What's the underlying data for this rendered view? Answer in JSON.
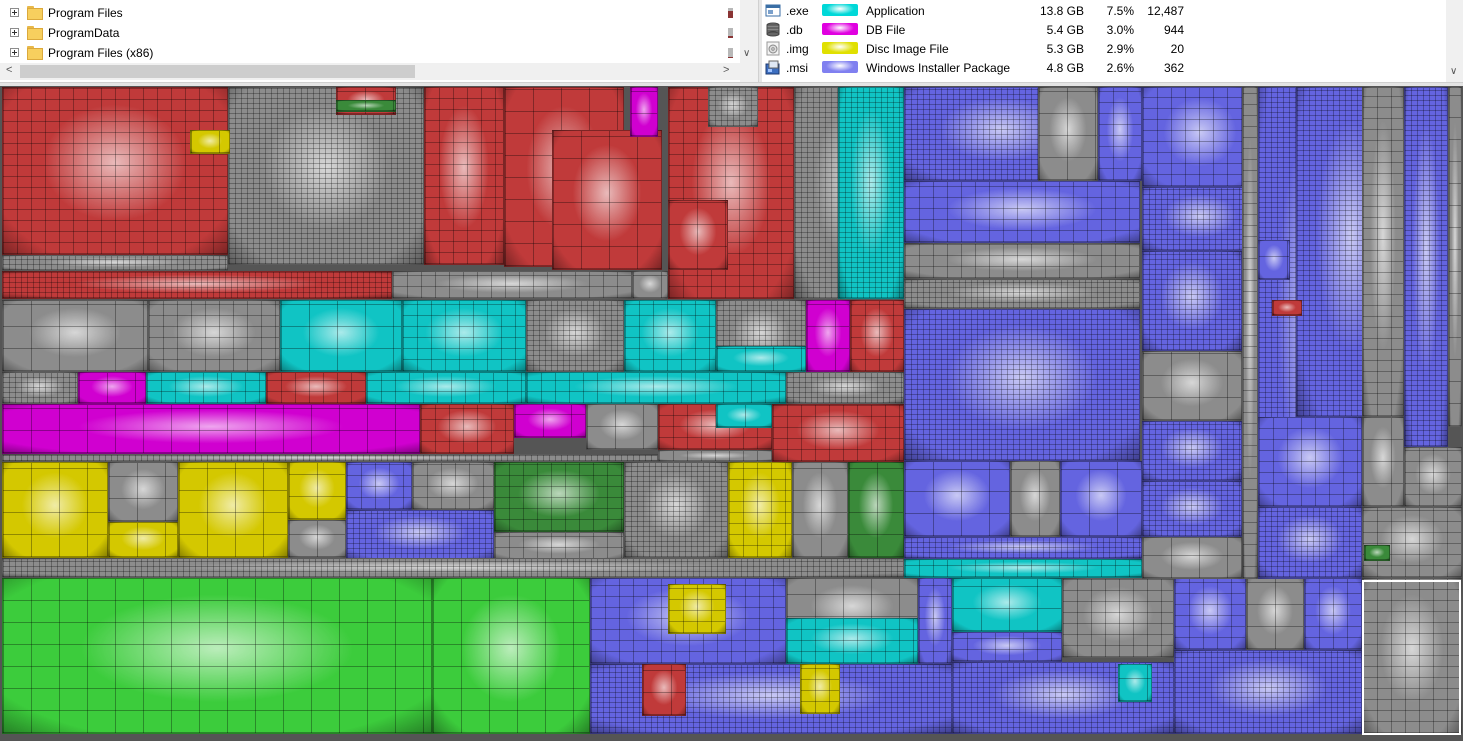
{
  "tree": {
    "items": [
      {
        "label": "Program Files",
        "bar_fraction": 0.75
      },
      {
        "label": "ProgramData",
        "bar_fraction": 0.25
      },
      {
        "label": "Program Files (x86)",
        "bar_fraction": 0.15
      }
    ]
  },
  "extensions": [
    {
      "ext": ".exe",
      "color": "#00d8d8",
      "description": "Application",
      "size": "13.8 GB",
      "percent": "7.5%",
      "files": "12,487",
      "icon": "window-icon"
    },
    {
      "ext": ".db",
      "color": "#e000e0",
      "description": "DB File",
      "size": "5.4 GB",
      "percent": "3.0%",
      "files": "944",
      "icon": "database-icon"
    },
    {
      "ext": ".img",
      "color": "#e0e000",
      "description": "Disc Image File",
      "size": "5.3 GB",
      "percent": "2.9%",
      "files": "20",
      "icon": "disc-icon"
    },
    {
      "ext": ".msi",
      "color": "#8080f0",
      "description": "Windows Installer Package",
      "size": "4.8 GB",
      "percent": "2.6%",
      "files": "362",
      "icon": "installer-icon"
    }
  ],
  "colors": {
    "red": "#c03a3a",
    "gray": "#8c8c8c",
    "cyan": "#10c4c4",
    "magenta": "#d000d0",
    "yellow": "#d4c800",
    "green": "#3ccc3c",
    "blue": "#6464e0",
    "darkgreen": "#3a8a3a",
    "selection": "#ffffff"
  }
}
